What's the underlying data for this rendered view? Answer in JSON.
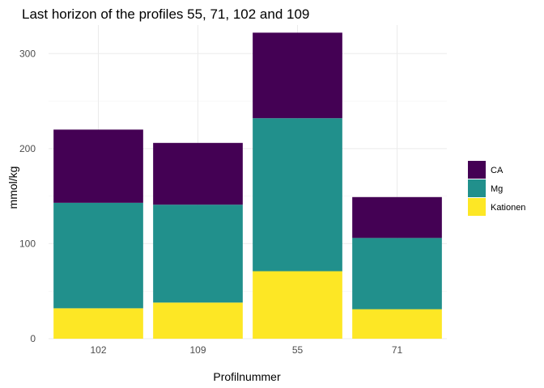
{
  "chart_data": {
    "type": "bar",
    "stacked": true,
    "title": "Last horizon of the profiles 55, 71, 102 and 109",
    "xlabel": "Profilnummer",
    "ylabel": "mmol/kg",
    "categories": [
      "102",
      "109",
      "55",
      "71"
    ],
    "series": [
      {
        "name": "Kationen",
        "color": "#FDE725",
        "values": [
          32,
          38,
          71,
          31
        ]
      },
      {
        "name": "Mg",
        "color": "#21908C",
        "values": [
          111,
          103,
          161,
          75
        ]
      },
      {
        "name": "CA",
        "color": "#440154",
        "values": [
          77,
          65,
          90,
          43
        ]
      }
    ],
    "ylim": [
      0,
      330
    ],
    "yticks": [
      0,
      100,
      200,
      300
    ],
    "grid": true,
    "legend": {
      "position": "right",
      "order": [
        "CA",
        "Mg",
        "Kationen"
      ]
    }
  }
}
